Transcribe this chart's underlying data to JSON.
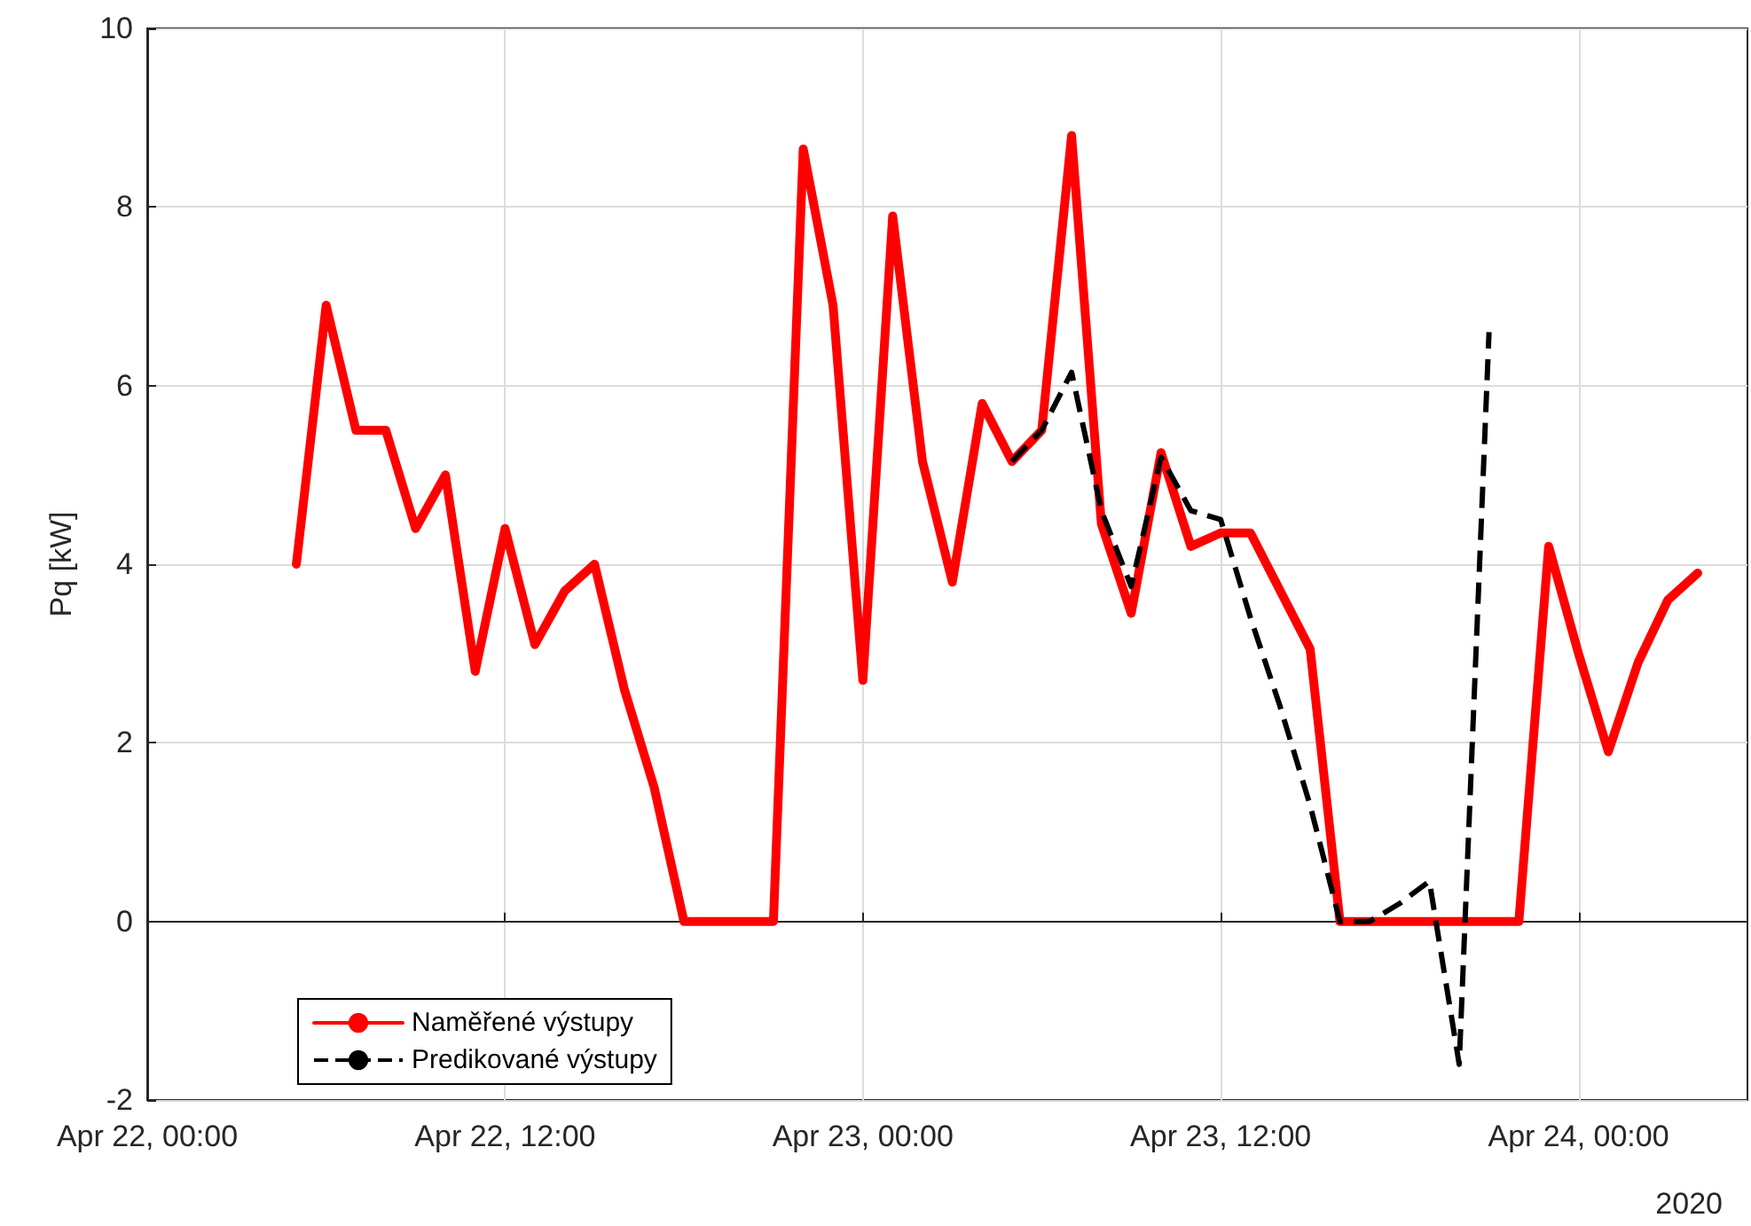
{
  "chart_data": {
    "type": "line",
    "ylabel": "Pq [kW]",
    "xlim": [
      "2020-04-22T00:00",
      "2020-04-24T05:40"
    ],
    "xticks": [
      {
        "value": "2020-04-22T00:00",
        "label": "Apr 22, 00:00"
      },
      {
        "value": "2020-04-22T12:00",
        "label": "Apr 22, 12:00"
      },
      {
        "value": "2020-04-23T00:00",
        "label": "Apr 23, 00:00"
      },
      {
        "value": "2020-04-23T12:00",
        "label": "Apr 23, 12:00"
      },
      {
        "value": "2020-04-24T00:00",
        "label": "Apr 24, 00:00"
      }
    ],
    "ylim": [
      -2,
      10
    ],
    "yticks": [
      -2,
      0,
      2,
      4,
      6,
      8,
      10
    ],
    "grid": true,
    "legend": "bottom left",
    "marker": "none",
    "annotations": [
      "2020"
    ],
    "series": [
      {
        "name": "Naměřené výstupy",
        "color": "#ff0000",
        "line_style": "solid",
        "x": [
          "2020-04-22T05:00",
          "2020-04-22T06:00",
          "2020-04-22T07:00",
          "2020-04-22T08:00",
          "2020-04-22T09:00",
          "2020-04-22T10:00",
          "2020-04-22T11:00",
          "2020-04-22T12:00",
          "2020-04-22T13:00",
          "2020-04-22T14:00",
          "2020-04-22T15:00",
          "2020-04-22T16:00",
          "2020-04-22T17:00",
          "2020-04-22T18:00",
          "2020-04-22T19:00",
          "2020-04-22T20:00",
          "2020-04-22T21:00",
          "2020-04-22T22:00",
          "2020-04-22T23:00",
          "2020-04-23T00:00",
          "2020-04-23T01:00",
          "2020-04-23T02:00",
          "2020-04-23T03:00",
          "2020-04-23T04:00",
          "2020-04-23T05:00",
          "2020-04-23T06:00",
          "2020-04-23T07:00",
          "2020-04-23T08:00",
          "2020-04-23T09:00",
          "2020-04-23T10:00",
          "2020-04-23T11:00",
          "2020-04-23T12:00",
          "2020-04-23T13:00",
          "2020-04-23T14:00",
          "2020-04-23T15:00",
          "2020-04-23T16:00",
          "2020-04-23T17:00",
          "2020-04-23T18:00",
          "2020-04-23T19:00",
          "2020-04-23T20:00",
          "2020-04-23T21:00",
          "2020-04-23T22:00",
          "2020-04-23T23:00",
          "2020-04-24T00:00",
          "2020-04-24T01:00",
          "2020-04-24T02:00",
          "2020-04-24T03:00",
          "2020-04-24T04:00"
        ],
        "values": [
          4.0,
          6.9,
          5.5,
          5.5,
          4.4,
          5.0,
          2.8,
          4.4,
          3.1,
          3.7,
          4.0,
          2.6,
          1.5,
          0,
          0,
          0,
          0,
          8.65,
          6.9,
          2.7,
          7.9,
          5.15,
          3.8,
          5.8,
          5.15,
          5.5,
          8.8,
          4.45,
          3.45,
          5.25,
          4.2,
          4.35,
          4.35,
          3.7,
          3.05,
          0,
          0,
          0,
          0,
          0,
          0,
          0,
          4.2,
          3.0,
          1.9,
          2.9,
          3.6,
          3.9
        ]
      },
      {
        "name": "Predikované výstupy",
        "color": "#000000",
        "line_style": "dashed",
        "x": [
          "2020-04-23T05:00",
          "2020-04-23T06:00",
          "2020-04-23T07:00",
          "2020-04-23T08:00",
          "2020-04-23T09:00",
          "2020-04-23T10:00",
          "2020-04-23T11:00",
          "2020-04-23T12:00",
          "2020-04-23T13:00",
          "2020-04-23T14:00",
          "2020-04-23T15:00",
          "2020-04-23T16:00",
          "2020-04-23T17:00",
          "2020-04-23T18:00",
          "2020-04-23T19:00",
          "2020-04-23T20:00",
          "2020-04-23T21:00"
        ],
        "values": [
          5.15,
          5.5,
          6.15,
          4.6,
          3.75,
          5.2,
          4.6,
          4.5,
          3.4,
          2.4,
          1.3,
          0,
          0,
          0.2,
          0.45,
          -1.6,
          6.6
        ]
      }
    ]
  }
}
